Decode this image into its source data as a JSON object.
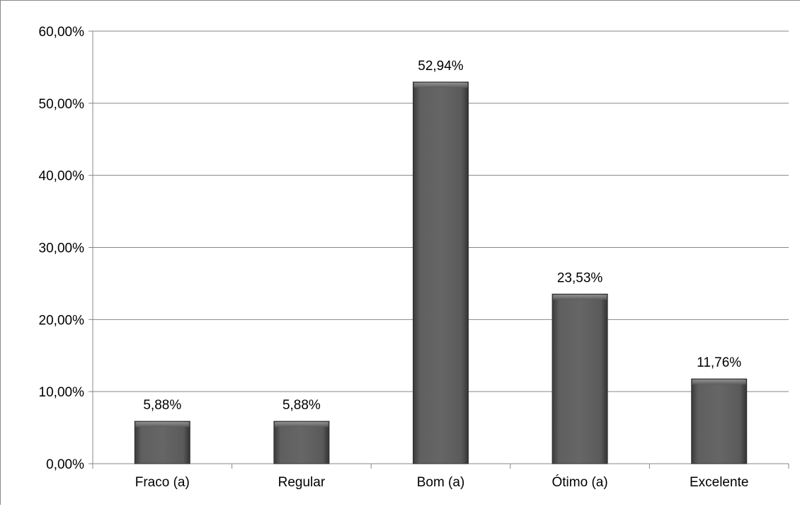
{
  "chart_data": {
    "type": "bar",
    "categories": [
      "Fraco (a)",
      "Regular",
      "Bom (a)",
      "Ótimo (a)",
      "Excelente"
    ],
    "values": [
      5.88,
      5.88,
      52.94,
      23.53,
      11.76
    ],
    "data_labels": [
      "5,88%",
      "5,88%",
      "52,94%",
      "23,53%",
      "11,76%"
    ],
    "y_ticks": [
      0,
      10,
      20,
      30,
      40,
      50,
      60
    ],
    "y_tick_labels": [
      "0,00%",
      "10,00%",
      "20,00%",
      "30,00%",
      "40,00%",
      "50,00%",
      "60,00%"
    ],
    "ylim": [
      0,
      60
    ],
    "title": "",
    "xlabel": "",
    "ylabel": "",
    "grid": true,
    "legend": "none",
    "colors": {
      "bar": "#5a5a5a",
      "bar_edge": "#2f2f2f",
      "grid": "#878787",
      "axis": "#878787"
    }
  }
}
